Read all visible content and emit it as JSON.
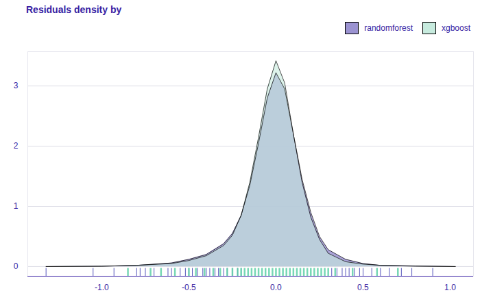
{
  "chart_data": {
    "type": "density",
    "title": "Residuals density by",
    "x": [
      -1.32,
      -1.0,
      -0.8,
      -0.6,
      -0.5,
      -0.4,
      -0.3,
      -0.25,
      -0.2,
      -0.15,
      -0.1,
      -0.05,
      0.0,
      0.05,
      0.1,
      0.15,
      0.2,
      0.25,
      0.3,
      0.4,
      0.5,
      0.6,
      0.8,
      1.03
    ],
    "series": [
      {
        "name": "randomforest",
        "color": "#9b93d1",
        "values": [
          0.0,
          0.005,
          0.02,
          0.06,
          0.12,
          0.2,
          0.38,
          0.55,
          0.85,
          1.35,
          2.05,
          2.8,
          3.22,
          2.95,
          2.2,
          1.45,
          0.9,
          0.5,
          0.28,
          0.12,
          0.05,
          0.02,
          0.01,
          0.0
        ],
        "rug": [
          -1.32,
          -1.05,
          -0.93,
          -0.8,
          -0.78,
          -0.75,
          -0.7,
          -0.62,
          -0.6,
          -0.55,
          -0.52,
          -0.5,
          -0.48,
          -0.45,
          -0.42,
          -0.4,
          -0.38,
          -0.35,
          -0.33,
          -0.3,
          -0.28,
          -0.25,
          -0.22,
          -0.2,
          0.32,
          0.35,
          0.38,
          0.4,
          0.42,
          0.45,
          0.48,
          0.5,
          0.55,
          0.6,
          0.65,
          0.72,
          0.78,
          0.9
        ]
      },
      {
        "name": "xgboost",
        "color": "#c7ebde",
        "values": [
          0.0,
          0.005,
          0.02,
          0.05,
          0.1,
          0.18,
          0.35,
          0.52,
          0.85,
          1.4,
          2.15,
          2.95,
          3.42,
          3.05,
          2.2,
          1.4,
          0.82,
          0.45,
          0.22,
          0.08,
          0.04,
          0.02,
          0.005,
          0.0
        ],
        "rug": [
          -0.85,
          -0.72,
          -0.66,
          -0.58,
          -0.5,
          -0.46,
          -0.41,
          -0.36,
          -0.32,
          -0.28,
          -0.25,
          -0.22,
          -0.2,
          -0.18,
          -0.16,
          -0.14,
          -0.12,
          -0.1,
          -0.08,
          -0.06,
          -0.04,
          -0.02,
          0.0,
          0.02,
          0.04,
          0.06,
          0.08,
          0.1,
          0.12,
          0.14,
          0.16,
          0.18,
          0.2,
          0.22,
          0.24,
          0.26,
          0.28,
          0.3,
          0.34,
          0.44,
          0.58,
          0.7
        ]
      }
    ],
    "xlim": [
      -1.425,
      1.134
    ],
    "ylim": [
      -0.16,
      3.57
    ],
    "xticks": [
      {
        "value": -1.0,
        "label": "-1.0"
      },
      -0.5,
      {
        "value": 0.0,
        "label": "0.0"
      },
      0.5,
      {
        "value": 1.0,
        "label": "1.0"
      }
    ],
    "yticks": [
      0,
      1,
      2,
      3
    ],
    "grid": true,
    "legend": "top-right"
  }
}
